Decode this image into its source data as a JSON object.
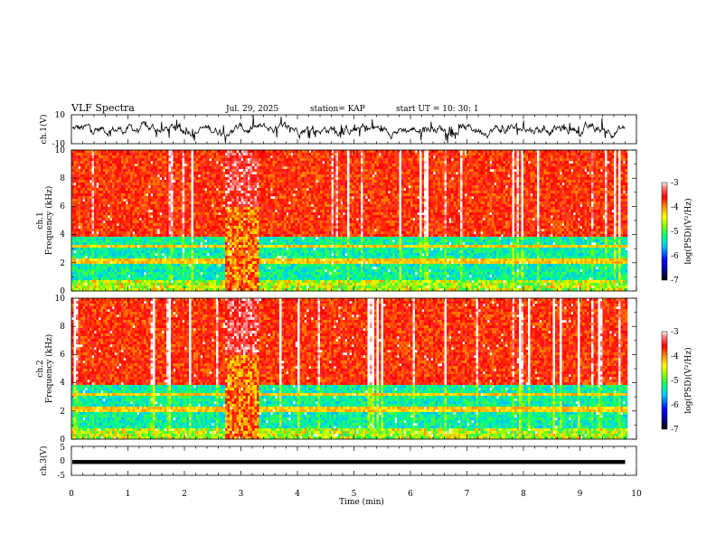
{
  "header": {
    "title": "VLF Spectra",
    "date": "Jul. 29, 2025",
    "station": "station= KAP",
    "start_ut": "start UT =   10: 30: 1"
  },
  "chart_data": {
    "type": "heatmap",
    "xlabel": "Time (min)",
    "xlim": [
      0,
      10
    ],
    "xticks": [
      "0",
      "1",
      "2",
      "3",
      "4",
      "5",
      "6",
      "7",
      "8",
      "9",
      "10"
    ],
    "data_end_min": 9.8,
    "panels": [
      {
        "id": "ch1_waveform",
        "type": "line",
        "ylabel": "ch.1(V)",
        "ylim": [
          -10,
          10
        ],
        "yticks": [
          "10",
          "-10"
        ],
        "trace_color": "#000000"
      },
      {
        "id": "ch1_spectrogram",
        "type": "heatmap",
        "ylabel_top": "ch.1",
        "ylabel": "Frequency (kHz)",
        "ylim": [
          0,
          10
        ],
        "yticks": [
          "0",
          "2",
          "4",
          "6",
          "8",
          "10"
        ],
        "colorbar": {
          "label": "log(PSD)(V²/Hz)",
          "range": [
            -7,
            -3
          ],
          "ticks": [
            "-3",
            "-4",
            "-5",
            "-6",
            "-7"
          ]
        }
      },
      {
        "id": "ch2_spectrogram",
        "type": "heatmap",
        "ylabel_top": "ch.2",
        "ylabel": "Frequency (kHz)",
        "ylim": [
          0,
          10
        ],
        "yticks": [
          "0",
          "2",
          "4",
          "6",
          "8",
          "10"
        ],
        "colorbar": {
          "label": "log(PSD)(V²/Hz)",
          "range": [
            -7,
            -3
          ],
          "ticks": [
            "-3",
            "-4",
            "-5",
            "-6",
            "-7"
          ]
        }
      },
      {
        "id": "ch3_waveform",
        "type": "line",
        "ylabel": "ch.3(V)",
        "ylim": [
          -5,
          5
        ],
        "yticks": [
          "5",
          "0",
          "-5"
        ],
        "trace_value": -0.4,
        "trace_color": "#000000"
      }
    ],
    "spectral_features": {
      "disturbance_interval_min": [
        2.7,
        3.3
      ],
      "quiet_band_khz": [
        0.8,
        3.8
      ],
      "level_above_4khz_logpsd": -3.7,
      "level_quiet_band_logpsd": -5.3
    }
  }
}
